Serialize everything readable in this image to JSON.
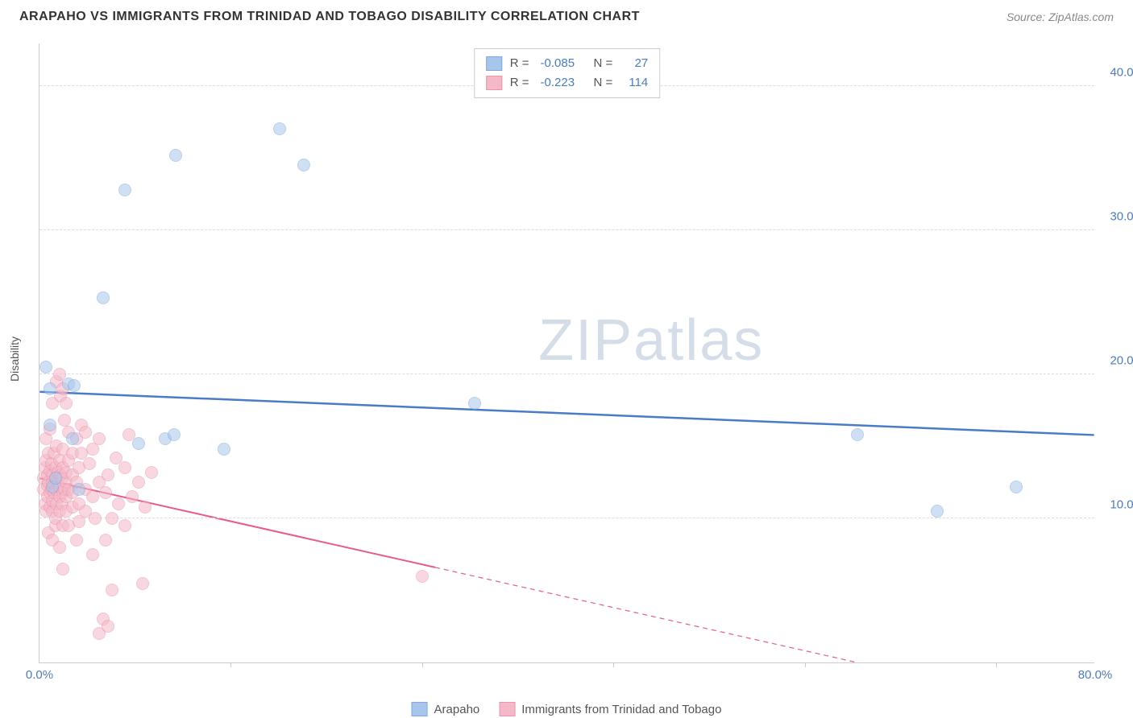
{
  "title": "ARAPAHO VS IMMIGRANTS FROM TRINIDAD AND TOBAGO DISABILITY CORRELATION CHART",
  "source_prefix": "Source: ",
  "source_name": "ZipAtlas.com",
  "ylabel": "Disability",
  "watermark_a": "ZIP",
  "watermark_b": "atlas",
  "chart": {
    "type": "scatter",
    "xlim": [
      0,
      80
    ],
    "ylim": [
      0,
      43
    ],
    "xticks": [
      0,
      80
    ],
    "xtick_labels": [
      "0.0%",
      "80.0%"
    ],
    "xtick_minor": [
      14.5,
      29,
      43.5,
      58,
      72.5
    ],
    "yticks": [
      10,
      20,
      30,
      40
    ],
    "ytick_labels": [
      "10.0%",
      "20.0%",
      "30.0%",
      "40.0%"
    ],
    "background_color": "#ffffff",
    "grid_color": "#dddddd",
    "marker_radius": 8,
    "marker_stroke_width": 1.5,
    "series": [
      {
        "name": "Arapaho",
        "fill": "#a8c6ec",
        "fill_opacity": 0.55,
        "stroke": "#7fa9de",
        "r_value": "-0.085",
        "n_value": "27",
        "trend": {
          "x1": 0,
          "y1": 18.8,
          "x2": 80,
          "y2": 15.8,
          "solid_until_x": 80,
          "color": "#4a7bc8",
          "width": 2.5
        },
        "points": [
          [
            0.5,
            20.5
          ],
          [
            0.8,
            19.0
          ],
          [
            0.8,
            16.5
          ],
          [
            1.0,
            12.2
          ],
          [
            1.2,
            12.8
          ],
          [
            2.2,
            19.3
          ],
          [
            2.5,
            15.5
          ],
          [
            2.6,
            19.2
          ],
          [
            3.0,
            12.0
          ],
          [
            4.8,
            25.3
          ],
          [
            6.5,
            32.8
          ],
          [
            7.5,
            15.2
          ],
          [
            9.5,
            15.5
          ],
          [
            10.2,
            15.8
          ],
          [
            10.3,
            35.2
          ],
          [
            14.0,
            14.8
          ],
          [
            18.2,
            37.0
          ],
          [
            20.0,
            34.5
          ],
          [
            33.0,
            18.0
          ],
          [
            62.0,
            15.8
          ],
          [
            68.0,
            10.5
          ],
          [
            74.0,
            12.2
          ]
        ]
      },
      {
        "name": "Immigrants from Trinidad and Tobago",
        "fill": "#f5b8c8",
        "fill_opacity": 0.55,
        "stroke": "#eb94ad",
        "r_value": "-0.223",
        "n_value": "114",
        "trend": {
          "x1": 0,
          "y1": 12.8,
          "x2": 62,
          "y2": 0,
          "solid_until_x": 30,
          "color": "#e85a8a",
          "width": 2
        },
        "points": [
          [
            0.3,
            12.0
          ],
          [
            0.3,
            12.8
          ],
          [
            0.4,
            11.0
          ],
          [
            0.4,
            13.5
          ],
          [
            0.5,
            10.5
          ],
          [
            0.5,
            14.0
          ],
          [
            0.5,
            15.5
          ],
          [
            0.6,
            11.5
          ],
          [
            0.6,
            12.3
          ],
          [
            0.6,
            13.0
          ],
          [
            0.7,
            9.0
          ],
          [
            0.7,
            12.5
          ],
          [
            0.7,
            14.5
          ],
          [
            0.8,
            10.8
          ],
          [
            0.8,
            11.8
          ],
          [
            0.8,
            13.3
          ],
          [
            0.8,
            16.2
          ],
          [
            0.9,
            12.0
          ],
          [
            0.9,
            13.8
          ],
          [
            1.0,
            8.5
          ],
          [
            1.0,
            10.5
          ],
          [
            1.0,
            11.2
          ],
          [
            1.0,
            12.5
          ],
          [
            1.0,
            13.0
          ],
          [
            1.0,
            18.0
          ],
          [
            1.1,
            11.8
          ],
          [
            1.1,
            14.5
          ],
          [
            1.2,
            9.5
          ],
          [
            1.2,
            10.0
          ],
          [
            1.2,
            12.0
          ],
          [
            1.2,
            12.8
          ],
          [
            1.2,
            13.5
          ],
          [
            1.3,
            11.0
          ],
          [
            1.3,
            15.0
          ],
          [
            1.3,
            19.5
          ],
          [
            1.4,
            12.5
          ],
          [
            1.4,
            13.2
          ],
          [
            1.5,
            8.0
          ],
          [
            1.5,
            10.5
          ],
          [
            1.5,
            11.5
          ],
          [
            1.5,
            12.2
          ],
          [
            1.5,
            14.0
          ],
          [
            1.5,
            20.0
          ],
          [
            1.6,
            13.0
          ],
          [
            1.6,
            18.5
          ],
          [
            1.7,
            11.0
          ],
          [
            1.7,
            12.8
          ],
          [
            1.8,
            6.5
          ],
          [
            1.8,
            9.5
          ],
          [
            1.8,
            11.8
          ],
          [
            1.8,
            13.5
          ],
          [
            1.8,
            14.8
          ],
          [
            1.8,
            19.0
          ],
          [
            1.9,
            12.0
          ],
          [
            1.9,
            16.8
          ],
          [
            2.0,
            10.5
          ],
          [
            2.0,
            11.5
          ],
          [
            2.0,
            12.5
          ],
          [
            2.0,
            13.2
          ],
          [
            2.0,
            18.0
          ],
          [
            2.2,
            9.5
          ],
          [
            2.2,
            12.0
          ],
          [
            2.2,
            14.0
          ],
          [
            2.2,
            16.0
          ],
          [
            2.5,
            10.8
          ],
          [
            2.5,
            11.8
          ],
          [
            2.5,
            13.0
          ],
          [
            2.5,
            14.5
          ],
          [
            2.8,
            8.5
          ],
          [
            2.8,
            12.5
          ],
          [
            2.8,
            15.5
          ],
          [
            3.0,
            9.8
          ],
          [
            3.0,
            11.0
          ],
          [
            3.0,
            13.5
          ],
          [
            3.2,
            14.5
          ],
          [
            3.2,
            16.5
          ],
          [
            3.5,
            10.5
          ],
          [
            3.5,
            12.0
          ],
          [
            3.5,
            16.0
          ],
          [
            3.8,
            13.8
          ],
          [
            4.0,
            7.5
          ],
          [
            4.0,
            11.5
          ],
          [
            4.0,
            14.8
          ],
          [
            4.2,
            10.0
          ],
          [
            4.5,
            2.0
          ],
          [
            4.5,
            12.5
          ],
          [
            4.5,
            15.5
          ],
          [
            4.8,
            3.0
          ],
          [
            5.0,
            8.5
          ],
          [
            5.0,
            11.8
          ],
          [
            5.2,
            2.5
          ],
          [
            5.2,
            13.0
          ],
          [
            5.5,
            5.0
          ],
          [
            5.5,
            10.0
          ],
          [
            5.8,
            14.2
          ],
          [
            6.0,
            11.0
          ],
          [
            6.5,
            9.5
          ],
          [
            6.5,
            13.5
          ],
          [
            6.8,
            15.8
          ],
          [
            7.0,
            11.5
          ],
          [
            7.5,
            12.5
          ],
          [
            7.8,
            5.5
          ],
          [
            8.0,
            10.8
          ],
          [
            8.5,
            13.2
          ],
          [
            29.0,
            6.0
          ]
        ]
      }
    ]
  },
  "legend_bottom": [
    {
      "label": "Arapaho",
      "fill": "#a8c6ec",
      "stroke": "#7fa9de"
    },
    {
      "label": "Immigrants from Trinidad and Tobago",
      "fill": "#f5b8c8",
      "stroke": "#eb94ad"
    }
  ]
}
